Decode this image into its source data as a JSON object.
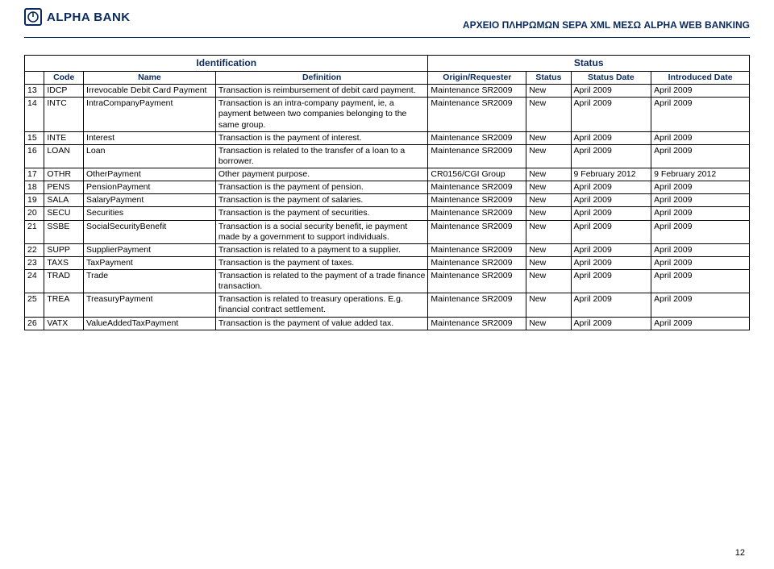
{
  "header": {
    "bank_name": "ALPHA BANK",
    "greek_title": "ΑΡΧΕΙΟ ΠΛΗΡΩΜΩΝ SEPA XML ΜΕΣΩ ALPHA WEB BANKING"
  },
  "table": {
    "group_headers": {
      "identification": "Identification",
      "status": "Status"
    },
    "columns": [
      "",
      "Code",
      "Name",
      "Definition",
      "Origin/Requester",
      "Status",
      "Status Date",
      "Introduced Date"
    ],
    "rows": [
      {
        "n": "13",
        "code": "IDCP",
        "name": "Irrevocable Debit Card Payment",
        "def": "Transaction is reimbursement of debit card payment.",
        "orig": "Maintenance SR2009",
        "stat": "New",
        "sdate": "April 2009",
        "idate": "April 2009"
      },
      {
        "n": "14",
        "code": "INTC",
        "name": "IntraCompanyPayment",
        "def": "Transaction is an intra-company payment, ie, a payment between two companies belonging to the same group.",
        "orig": "Maintenance SR2009",
        "stat": "New",
        "sdate": "April 2009",
        "idate": "April 2009"
      },
      {
        "n": "15",
        "code": "INTE",
        "name": "Interest",
        "def": "Transaction is the payment of interest.",
        "orig": "Maintenance SR2009",
        "stat": "New",
        "sdate": "April 2009",
        "idate": "April 2009"
      },
      {
        "n": "16",
        "code": "LOAN",
        "name": "Loan",
        "def": "Transaction is related to the transfer of a loan to a borrower.",
        "orig": "Maintenance SR2009",
        "stat": "New",
        "sdate": "April 2009",
        "idate": "April 2009"
      },
      {
        "n": "17",
        "code": "OTHR",
        "name": "OtherPayment",
        "def": "Other payment purpose.",
        "orig": "CR0156/CGI Group",
        "stat": "New",
        "sdate": "9 February 2012",
        "idate": "9 February 2012"
      },
      {
        "n": "18",
        "code": "PENS",
        "name": "PensionPayment",
        "def": "Transaction is the payment of pension.",
        "orig": "Maintenance SR2009",
        "stat": "New",
        "sdate": "April 2009",
        "idate": "April 2009"
      },
      {
        "n": "19",
        "code": "SALA",
        "name": "SalaryPayment",
        "def": "Transaction is the payment of salaries.",
        "orig": "Maintenance SR2009",
        "stat": "New",
        "sdate": "April 2009",
        "idate": "April 2009"
      },
      {
        "n": "20",
        "code": "SECU",
        "name": "Securities",
        "def": "Transaction is the payment of securities.",
        "orig": "Maintenance SR2009",
        "stat": "New",
        "sdate": "April 2009",
        "idate": "April 2009"
      },
      {
        "n": "21",
        "code": "SSBE",
        "name": "SocialSecurityBenefit",
        "def": "Transaction is a social security benefit, ie payment made by a government to support individuals.",
        "orig": "Maintenance SR2009",
        "stat": "New",
        "sdate": "April 2009",
        "idate": "April 2009"
      },
      {
        "n": "22",
        "code": "SUPP",
        "name": "SupplierPayment",
        "def": "Transaction is related to a payment to a supplier.",
        "orig": "Maintenance SR2009",
        "stat": "New",
        "sdate": "April 2009",
        "idate": "April 2009"
      },
      {
        "n": "23",
        "code": "TAXS",
        "name": "TaxPayment",
        "def": "Transaction is the payment of taxes.",
        "orig": "Maintenance SR2009",
        "stat": "New",
        "sdate": "April 2009",
        "idate": "April 2009"
      },
      {
        "n": "24",
        "code": "TRAD",
        "name": "Trade",
        "def": "Transaction is related to the payment of a trade finance transaction.",
        "orig": "Maintenance SR2009",
        "stat": "New",
        "sdate": "April 2009",
        "idate": "April 2009"
      },
      {
        "n": "25",
        "code": "TREA",
        "name": "TreasuryPayment",
        "def": "Transaction is related to treasury operations.  E.g. financial contract settlement.",
        "orig": "Maintenance SR2009",
        "stat": "New",
        "sdate": "April 2009",
        "idate": "April 2009"
      },
      {
        "n": "26",
        "code": "VATX",
        "name": "ValueAddedTaxPayment",
        "def": "Transaction is the payment of value added tax.",
        "orig": "Maintenance SR2009",
        "stat": "New",
        "sdate": "April 2009",
        "idate": "April 2009"
      }
    ]
  },
  "page_number": "12",
  "colors": {
    "brand": "#0a2a5c",
    "border": "#000000",
    "background": "#ffffff"
  }
}
